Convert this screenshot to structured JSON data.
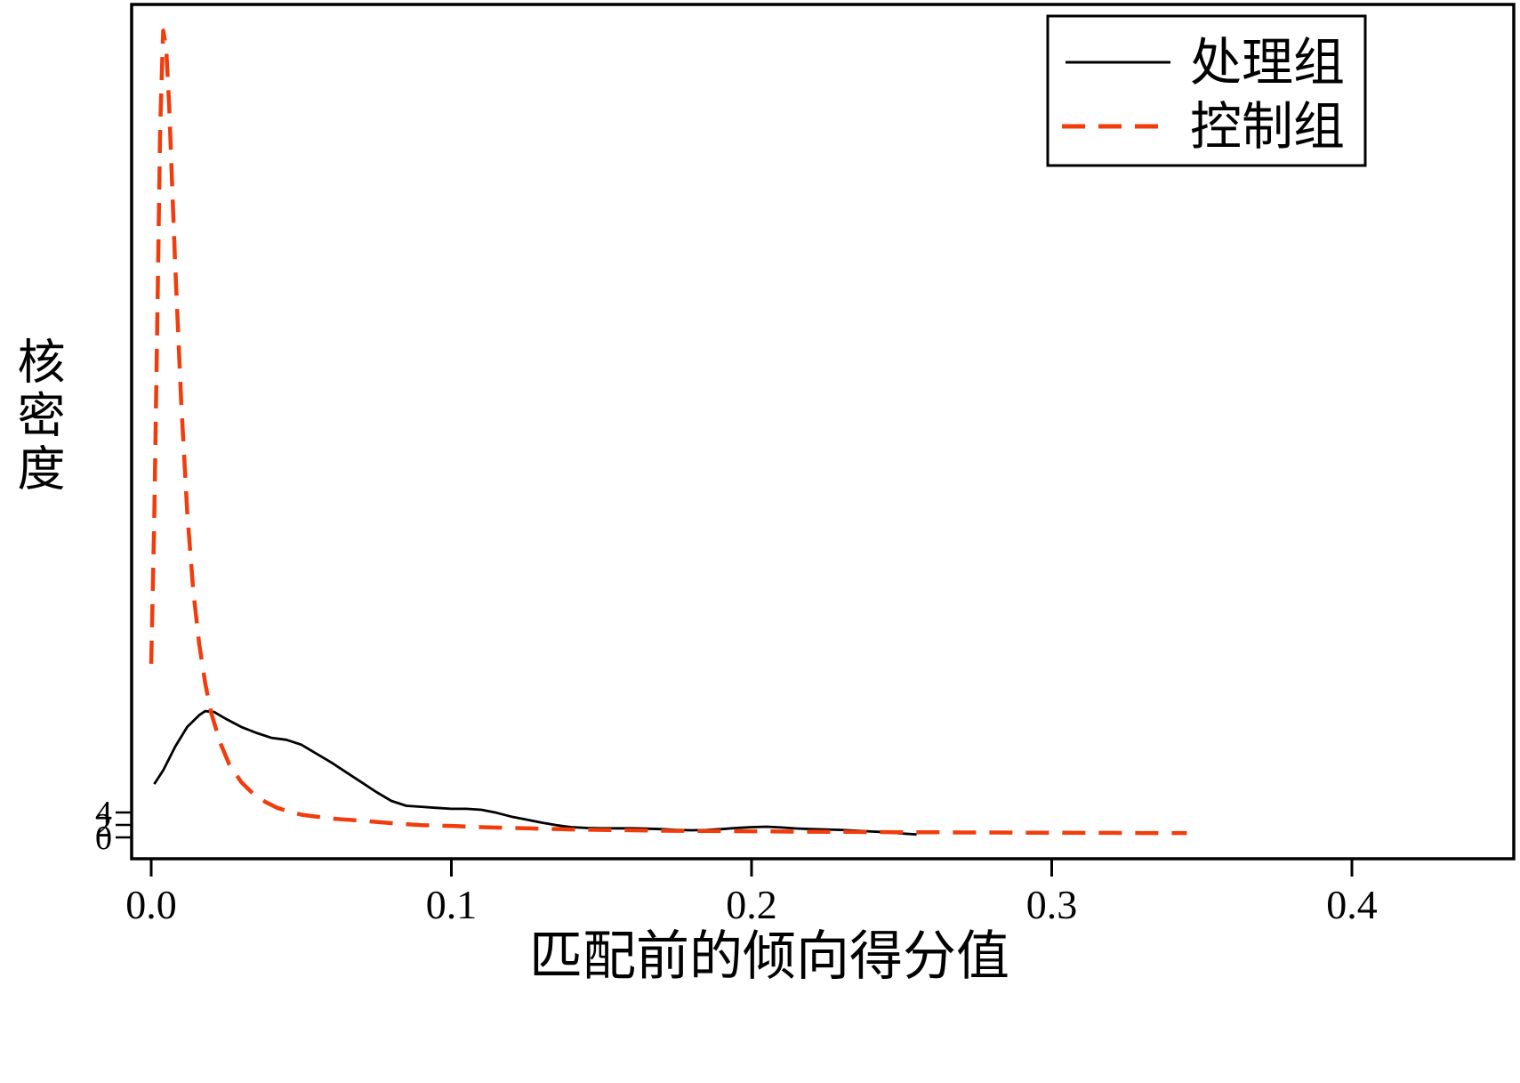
{
  "figure": {
    "background": "#ffffff",
    "frame_color": "#000000"
  },
  "chart_data": {
    "type": "line",
    "title": "",
    "xlabel": "匹配前的倾向得分值",
    "ylabel": "核密度",
    "xlim": [
      0,
      0.4
    ],
    "ylim": [
      0,
      42
    ],
    "grid": false,
    "legend_position": "top-right",
    "xticks": [
      0.0,
      0.1,
      0.2,
      0.3,
      0.4
    ],
    "xtick_labels": [
      "0.0",
      "0.1",
      "0.2",
      "0.3",
      "0.4"
    ],
    "yticks": [
      0,
      2,
      4
    ],
    "ytick_labels": [
      "0",
      "2",
      "4"
    ],
    "series": [
      {
        "name": "处理组",
        "color": "#000000",
        "style": "solid",
        "points": [
          [
            0.001,
            2.7
          ],
          [
            0.004,
            3.4
          ],
          [
            0.008,
            4.6
          ],
          [
            0.012,
            5.6
          ],
          [
            0.016,
            6.2
          ],
          [
            0.018,
            6.4
          ],
          [
            0.021,
            6.35
          ],
          [
            0.025,
            6.0
          ],
          [
            0.03,
            5.6
          ],
          [
            0.035,
            5.3
          ],
          [
            0.04,
            5.05
          ],
          [
            0.045,
            4.95
          ],
          [
            0.05,
            4.7
          ],
          [
            0.055,
            4.25
          ],
          [
            0.06,
            3.8
          ],
          [
            0.065,
            3.3
          ],
          [
            0.07,
            2.8
          ],
          [
            0.075,
            2.3
          ],
          [
            0.08,
            1.85
          ],
          [
            0.085,
            1.6
          ],
          [
            0.09,
            1.55
          ],
          [
            0.095,
            1.5
          ],
          [
            0.1,
            1.45
          ],
          [
            0.105,
            1.45
          ],
          [
            0.11,
            1.4
          ],
          [
            0.115,
            1.25
          ],
          [
            0.12,
            1.05
          ],
          [
            0.125,
            0.9
          ],
          [
            0.13,
            0.75
          ],
          [
            0.135,
            0.62
          ],
          [
            0.14,
            0.52
          ],
          [
            0.145,
            0.48
          ],
          [
            0.15,
            0.46
          ],
          [
            0.155,
            0.46
          ],
          [
            0.16,
            0.46
          ],
          [
            0.165,
            0.44
          ],
          [
            0.17,
            0.42
          ],
          [
            0.175,
            0.38
          ],
          [
            0.18,
            0.36
          ],
          [
            0.185,
            0.38
          ],
          [
            0.19,
            0.42
          ],
          [
            0.195,
            0.48
          ],
          [
            0.2,
            0.52
          ],
          [
            0.205,
            0.54
          ],
          [
            0.21,
            0.5
          ],
          [
            0.215,
            0.45
          ],
          [
            0.22,
            0.42
          ],
          [
            0.225,
            0.4
          ],
          [
            0.23,
            0.38
          ],
          [
            0.235,
            0.34
          ],
          [
            0.24,
            0.3
          ],
          [
            0.245,
            0.26
          ],
          [
            0.25,
            0.2
          ],
          [
            0.255,
            0.15
          ]
        ]
      },
      {
        "name": "控制组",
        "color": "#f23c0c",
        "style": "dashed",
        "points": [
          [
            0.0,
            8.8
          ],
          [
            0.001,
            16.0
          ],
          [
            0.002,
            26.0
          ],
          [
            0.003,
            36.0
          ],
          [
            0.004,
            40.9
          ],
          [
            0.005,
            40.0
          ],
          [
            0.006,
            37.0
          ],
          [
            0.007,
            33.0
          ],
          [
            0.008,
            29.0
          ],
          [
            0.01,
            22.0
          ],
          [
            0.012,
            16.5
          ],
          [
            0.014,
            12.5
          ],
          [
            0.016,
            9.8
          ],
          [
            0.018,
            7.8
          ],
          [
            0.02,
            6.3
          ],
          [
            0.023,
            4.8
          ],
          [
            0.026,
            3.7
          ],
          [
            0.03,
            2.8
          ],
          [
            0.034,
            2.2
          ],
          [
            0.038,
            1.8
          ],
          [
            0.042,
            1.5
          ],
          [
            0.046,
            1.3
          ],
          [
            0.05,
            1.15
          ],
          [
            0.06,
            0.95
          ],
          [
            0.07,
            0.85
          ],
          [
            0.08,
            0.72
          ],
          [
            0.09,
            0.62
          ],
          [
            0.1,
            0.58
          ],
          [
            0.11,
            0.52
          ],
          [
            0.12,
            0.48
          ],
          [
            0.13,
            0.44
          ],
          [
            0.14,
            0.4
          ],
          [
            0.15,
            0.38
          ],
          [
            0.16,
            0.36
          ],
          [
            0.17,
            0.34
          ],
          [
            0.18,
            0.33
          ],
          [
            0.19,
            0.32
          ],
          [
            0.2,
            0.31
          ],
          [
            0.21,
            0.3
          ],
          [
            0.22,
            0.29
          ],
          [
            0.23,
            0.28
          ],
          [
            0.24,
            0.27
          ],
          [
            0.25,
            0.26
          ],
          [
            0.26,
            0.26
          ],
          [
            0.27,
            0.25
          ],
          [
            0.28,
            0.25
          ],
          [
            0.29,
            0.24
          ],
          [
            0.3,
            0.24
          ],
          [
            0.31,
            0.23
          ],
          [
            0.32,
            0.23
          ],
          [
            0.33,
            0.22
          ],
          [
            0.34,
            0.22
          ],
          [
            0.345,
            0.22
          ]
        ]
      }
    ]
  }
}
